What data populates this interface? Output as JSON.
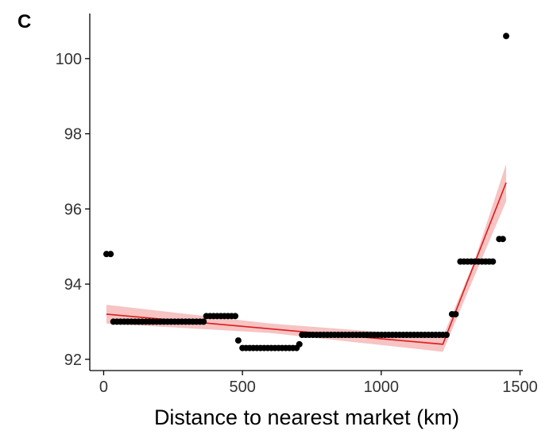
{
  "panel_label": "C",
  "colors": {
    "points": "#000000",
    "fit_line": "#dd1c1c",
    "ci_band": "#f6b8b8",
    "axis": "#000000"
  },
  "chart_data": {
    "type": "scatter",
    "title": "",
    "xlabel": "Distance to nearest market (km)",
    "ylabel": "",
    "xlim": [
      -50,
      1510
    ],
    "ylim": [
      91.7,
      101.2
    ],
    "xticks": [
      0,
      500,
      1000,
      1500
    ],
    "yticks": [
      92,
      94,
      96,
      98,
      100
    ],
    "xtick_labels": [
      "0",
      "500",
      "1000",
      "1500"
    ],
    "ytick_labels": [
      "92",
      "94",
      "96",
      "98",
      "100"
    ],
    "grid": false,
    "legend": "none",
    "point_groups": [
      {
        "x_start": 10,
        "x_end": 25,
        "step": 15,
        "y": 94.8
      },
      {
        "x_start": 35,
        "x_end": 360,
        "step": 13,
        "y": 93.0
      },
      {
        "x_start": 370,
        "x_end": 475,
        "step": 13,
        "y": 93.15
      },
      {
        "x_start": 485,
        "x_end": 485,
        "step": 13,
        "y": 92.5
      },
      {
        "x_start": 500,
        "x_end": 700,
        "step": 13,
        "y": 92.3
      },
      {
        "x_start": 705,
        "x_end": 705,
        "step": 13,
        "y": 92.4
      },
      {
        "x_start": 715,
        "x_end": 1245,
        "step": 13,
        "y": 92.65
      },
      {
        "x_start": 1255,
        "x_end": 1270,
        "step": 13,
        "y": 93.2
      },
      {
        "x_start": 1285,
        "x_end": 1410,
        "step": 13,
        "y": 94.6
      },
      {
        "x_start": 1425,
        "x_end": 1440,
        "step": 13,
        "y": 95.2
      },
      {
        "x_start": 1450,
        "x_end": 1450,
        "step": 13,
        "y": 100.6
      }
    ],
    "fit_line": [
      [
        10,
        93.2
      ],
      [
        1222,
        92.4
      ],
      [
        1450,
        96.7
      ]
    ],
    "ci_upper": [
      [
        10,
        93.45
      ],
      [
        600,
        92.95
      ],
      [
        1222,
        92.6
      ],
      [
        1335,
        94.6
      ],
      [
        1450,
        97.2
      ]
    ],
    "ci_lower": [
      [
        10,
        92.95
      ],
      [
        600,
        92.7
      ],
      [
        1222,
        92.2
      ],
      [
        1335,
        94.2
      ],
      [
        1450,
        96.2
      ]
    ]
  }
}
